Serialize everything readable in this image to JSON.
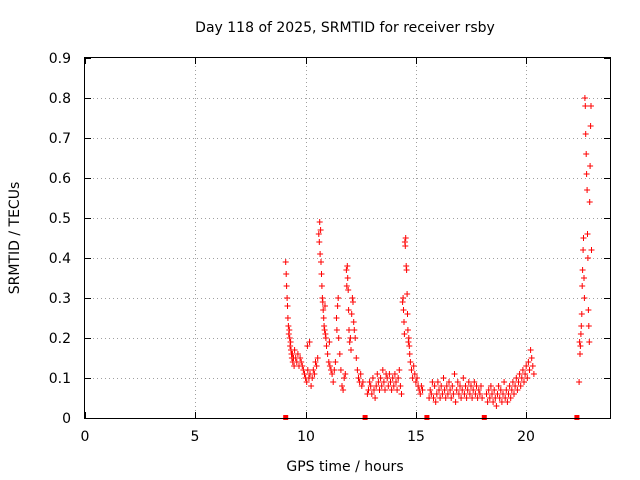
{
  "chart_data": {
    "type": "scatter",
    "title": "Day 118 of 2025, SRMTID for receiver rsby",
    "xlabel": "GPS time / hours",
    "ylabel": "SRMTID / TECUs",
    "xlim": [
      0,
      23.8
    ],
    "ylim": [
      0,
      0.9
    ],
    "x_ticks": [
      0,
      5,
      10,
      15,
      20
    ],
    "x_tick_labels": [
      "0",
      "5",
      "10",
      "15",
      "20"
    ],
    "y_ticks": [
      0,
      0.1,
      0.2,
      0.3,
      0.4,
      0.5,
      0.6,
      0.7,
      0.8,
      0.9
    ],
    "y_tick_labels": [
      "0",
      "0.1",
      "0.2",
      "0.3",
      "0.4",
      "0.5",
      "0.6",
      "0.7",
      "0.8",
      "0.9"
    ],
    "grid": true,
    "marker": "+",
    "color": "#ff0000",
    "data_gap_markers_x": [
      9.1,
      12.7,
      15.5,
      18.1,
      22.3
    ],
    "series": [
      {
        "name": "SRMTID",
        "points": [
          [
            9.1,
            0.39
          ],
          [
            9.12,
            0.36
          ],
          [
            9.14,
            0.33
          ],
          [
            9.16,
            0.3
          ],
          [
            9.18,
            0.28
          ],
          [
            9.2,
            0.25
          ],
          [
            9.22,
            0.23
          ],
          [
            9.24,
            0.21
          ],
          [
            9.26,
            0.22
          ],
          [
            9.28,
            0.2
          ],
          [
            9.3,
            0.18
          ],
          [
            9.32,
            0.19
          ],
          [
            9.34,
            0.17
          ],
          [
            9.36,
            0.16
          ],
          [
            9.38,
            0.15
          ],
          [
            9.4,
            0.16
          ],
          [
            9.42,
            0.14
          ],
          [
            9.45,
            0.15
          ],
          [
            9.48,
            0.13
          ],
          [
            9.5,
            0.17
          ],
          [
            9.55,
            0.15
          ],
          [
            9.6,
            0.14
          ],
          [
            9.65,
            0.16
          ],
          [
            9.7,
            0.13
          ],
          [
            9.75,
            0.15
          ],
          [
            9.8,
            0.14
          ],
          [
            9.85,
            0.13
          ],
          [
            9.9,
            0.12
          ],
          [
            9.95,
            0.11
          ],
          [
            10.0,
            0.1
          ],
          [
            10.05,
            0.09
          ],
          [
            10.08,
            0.18
          ],
          [
            10.1,
            0.12
          ],
          [
            10.15,
            0.1
          ],
          [
            10.18,
            0.19
          ],
          [
            10.2,
            0.11
          ],
          [
            10.25,
            0.08
          ],
          [
            10.3,
            0.1
          ],
          [
            10.35,
            0.12
          ],
          [
            10.4,
            0.11
          ],
          [
            10.45,
            0.14
          ],
          [
            10.5,
            0.13
          ],
          [
            10.55,
            0.15
          ],
          [
            10.6,
            0.46
          ],
          [
            10.62,
            0.44
          ],
          [
            10.64,
            0.49
          ],
          [
            10.66,
            0.41
          ],
          [
            10.68,
            0.47
          ],
          [
            10.7,
            0.39
          ],
          [
            10.72,
            0.36
          ],
          [
            10.74,
            0.33
          ],
          [
            10.76,
            0.3
          ],
          [
            10.78,
            0.29
          ],
          [
            10.8,
            0.27
          ],
          [
            10.82,
            0.25
          ],
          [
            10.84,
            0.23
          ],
          [
            10.86,
            0.22
          ],
          [
            10.88,
            0.28
          ],
          [
            10.9,
            0.21
          ],
          [
            10.92,
            0.2
          ],
          [
            10.95,
            0.18
          ],
          [
            11.0,
            0.16
          ],
          [
            11.05,
            0.14
          ],
          [
            11.08,
            0.19
          ],
          [
            11.1,
            0.13
          ],
          [
            11.15,
            0.12
          ],
          [
            11.2,
            0.11
          ],
          [
            11.25,
            0.09
          ],
          [
            11.3,
            0.12
          ],
          [
            11.35,
            0.14
          ],
          [
            11.4,
            0.25
          ],
          [
            11.42,
            0.22
          ],
          [
            11.45,
            0.28
          ],
          [
            11.48,
            0.3
          ],
          [
            11.5,
            0.2
          ],
          [
            11.55,
            0.16
          ],
          [
            11.6,
            0.12
          ],
          [
            11.65,
            0.08
          ],
          [
            11.7,
            0.07
          ],
          [
            11.75,
            0.1
          ],
          [
            11.8,
            0.11
          ],
          [
            11.85,
            0.37
          ],
          [
            11.87,
            0.33
          ],
          [
            11.89,
            0.38
          ],
          [
            11.91,
            0.35
          ],
          [
            11.93,
            0.32
          ],
          [
            11.95,
            0.27
          ],
          [
            11.97,
            0.22
          ],
          [
            12.0,
            0.19
          ],
          [
            12.03,
            0.2
          ],
          [
            12.06,
            0.17
          ],
          [
            12.09,
            0.26
          ],
          [
            12.12,
            0.3
          ],
          [
            12.15,
            0.29
          ],
          [
            12.18,
            0.24
          ],
          [
            12.21,
            0.22
          ],
          [
            12.25,
            0.2
          ],
          [
            12.3,
            0.15
          ],
          [
            12.35,
            0.12
          ],
          [
            12.4,
            0.1
          ],
          [
            12.45,
            0.09
          ],
          [
            12.5,
            0.11
          ],
          [
            12.55,
            0.08
          ],
          [
            12.6,
            0.09
          ],
          [
            12.8,
            0.06
          ],
          [
            12.85,
            0.07
          ],
          [
            12.9,
            0.09
          ],
          [
            12.95,
            0.08
          ],
          [
            13.0,
            0.06
          ],
          [
            13.05,
            0.1
          ],
          [
            13.1,
            0.07
          ],
          [
            13.15,
            0.05
          ],
          [
            13.2,
            0.08
          ],
          [
            13.25,
            0.11
          ],
          [
            13.3,
            0.09
          ],
          [
            13.35,
            0.07
          ],
          [
            13.4,
            0.1
          ],
          [
            13.45,
            0.08
          ],
          [
            13.5,
            0.12
          ],
          [
            13.55,
            0.09
          ],
          [
            13.6,
            0.07
          ],
          [
            13.65,
            0.11
          ],
          [
            13.7,
            0.1
          ],
          [
            13.75,
            0.08
          ],
          [
            13.8,
            0.11
          ],
          [
            13.85,
            0.09
          ],
          [
            13.9,
            0.07
          ],
          [
            13.95,
            0.1
          ],
          [
            14.0,
            0.08
          ],
          [
            14.05,
            0.11
          ],
          [
            14.1,
            0.09
          ],
          [
            14.15,
            0.07
          ],
          [
            14.2,
            0.1
          ],
          [
            14.25,
            0.12
          ],
          [
            14.3,
            0.08
          ],
          [
            14.35,
            0.06
          ],
          [
            14.4,
            0.29
          ],
          [
            14.42,
            0.3
          ],
          [
            14.44,
            0.27
          ],
          [
            14.46,
            0.24
          ],
          [
            14.48,
            0.21
          ],
          [
            14.5,
            0.44
          ],
          [
            14.52,
            0.43
          ],
          [
            14.54,
            0.45
          ],
          [
            14.56,
            0.38
          ],
          [
            14.58,
            0.37
          ],
          [
            14.6,
            0.31
          ],
          [
            14.62,
            0.26
          ],
          [
            14.64,
            0.22
          ],
          [
            14.66,
            0.19
          ],
          [
            14.68,
            0.2
          ],
          [
            14.7,
            0.18
          ],
          [
            14.72,
            0.16
          ],
          [
            14.75,
            0.14
          ],
          [
            14.8,
            0.12
          ],
          [
            14.85,
            0.1
          ],
          [
            14.9,
            0.13
          ],
          [
            14.95,
            0.11
          ],
          [
            15.0,
            0.09
          ],
          [
            15.05,
            0.1
          ],
          [
            15.1,
            0.08
          ],
          [
            15.15,
            0.07
          ],
          [
            15.2,
            0.06
          ],
          [
            15.25,
            0.08
          ],
          [
            15.3,
            0.07
          ],
          [
            15.6,
            0.05
          ],
          [
            15.65,
            0.07
          ],
          [
            15.7,
            0.06
          ],
          [
            15.75,
            0.09
          ],
          [
            15.8,
            0.05
          ],
          [
            15.85,
            0.08
          ],
          [
            15.9,
            0.04
          ],
          [
            15.95,
            0.06
          ],
          [
            16.0,
            0.09
          ],
          [
            16.05,
            0.07
          ],
          [
            16.1,
            0.05
          ],
          [
            16.15,
            0.08
          ],
          [
            16.2,
            0.06
          ],
          [
            16.25,
            0.1
          ],
          [
            16.3,
            0.07
          ],
          [
            16.35,
            0.05
          ],
          [
            16.4,
            0.08
          ],
          [
            16.45,
            0.06
          ],
          [
            16.5,
            0.09
          ],
          [
            16.55,
            0.07
          ],
          [
            16.6,
            0.05
          ],
          [
            16.65,
            0.08
          ],
          [
            16.7,
            0.06
          ],
          [
            16.75,
            0.11
          ],
          [
            16.8,
            0.04
          ],
          [
            16.85,
            0.07
          ],
          [
            16.9,
            0.09
          ],
          [
            16.95,
            0.06
          ],
          [
            17.0,
            0.08
          ],
          [
            17.05,
            0.05
          ],
          [
            17.1,
            0.07
          ],
          [
            17.15,
            0.1
          ],
          [
            17.2,
            0.06
          ],
          [
            17.25,
            0.08
          ],
          [
            17.3,
            0.05
          ],
          [
            17.35,
            0.07
          ],
          [
            17.4,
            0.09
          ],
          [
            17.45,
            0.06
          ],
          [
            17.5,
            0.08
          ],
          [
            17.55,
            0.05
          ],
          [
            17.6,
            0.07
          ],
          [
            17.65,
            0.09
          ],
          [
            17.7,
            0.06
          ],
          [
            17.75,
            0.08
          ],
          [
            17.8,
            0.05
          ],
          [
            17.85,
            0.07
          ],
          [
            17.9,
            0.06
          ],
          [
            17.95,
            0.08
          ],
          [
            18.0,
            0.05
          ],
          [
            18.2,
            0.06
          ],
          [
            18.25,
            0.04
          ],
          [
            18.3,
            0.07
          ],
          [
            18.35,
            0.05
          ],
          [
            18.4,
            0.08
          ],
          [
            18.45,
            0.06
          ],
          [
            18.5,
            0.04
          ],
          [
            18.55,
            0.07
          ],
          [
            18.6,
            0.05
          ],
          [
            18.65,
            0.03
          ],
          [
            18.7,
            0.06
          ],
          [
            18.75,
            0.08
          ],
          [
            18.8,
            0.05
          ],
          [
            18.85,
            0.07
          ],
          [
            18.9,
            0.04
          ],
          [
            18.95,
            0.06
          ],
          [
            19.0,
            0.09
          ],
          [
            19.05,
            0.05
          ],
          [
            19.1,
            0.07
          ],
          [
            19.15,
            0.04
          ],
          [
            19.2,
            0.06
          ],
          [
            19.25,
            0.08
          ],
          [
            19.3,
            0.05
          ],
          [
            19.35,
            0.07
          ],
          [
            19.4,
            0.09
          ],
          [
            19.45,
            0.06
          ],
          [
            19.5,
            0.08
          ],
          [
            19.55,
            0.1
          ],
          [
            19.6,
            0.07
          ],
          [
            19.65,
            0.09
          ],
          [
            19.7,
            0.11
          ],
          [
            19.75,
            0.08
          ],
          [
            19.8,
            0.1
          ],
          [
            19.85,
            0.12
          ],
          [
            19.9,
            0.09
          ],
          [
            19.95,
            0.11
          ],
          [
            20.0,
            0.13
          ],
          [
            20.05,
            0.1
          ],
          [
            20.1,
            0.14
          ],
          [
            20.15,
            0.12
          ],
          [
            20.2,
            0.17
          ],
          [
            20.25,
            0.15
          ],
          [
            20.3,
            0.13
          ],
          [
            20.35,
            0.11
          ],
          [
            22.4,
            0.09
          ],
          [
            22.42,
            0.19
          ],
          [
            22.44,
            0.16
          ],
          [
            22.46,
            0.18
          ],
          [
            22.48,
            0.21
          ],
          [
            22.5,
            0.23
          ],
          [
            22.52,
            0.26
          ],
          [
            22.54,
            0.33
          ],
          [
            22.56,
            0.37
          ],
          [
            22.58,
            0.42
          ],
          [
            22.6,
            0.45
          ],
          [
            22.62,
            0.35
          ],
          [
            22.64,
            0.3
          ],
          [
            22.66,
            0.8
          ],
          [
            22.68,
            0.78
          ],
          [
            22.7,
            0.71
          ],
          [
            22.72,
            0.66
          ],
          [
            22.74,
            0.61
          ],
          [
            22.76,
            0.57
          ],
          [
            22.78,
            0.46
          ],
          [
            22.8,
            0.4
          ],
          [
            22.82,
            0.27
          ],
          [
            22.84,
            0.23
          ],
          [
            22.86,
            0.19
          ],
          [
            22.88,
            0.54
          ],
          [
            22.9,
            0.63
          ],
          [
            22.92,
            0.73
          ],
          [
            22.94,
            0.78
          ],
          [
            22.96,
            0.42
          ]
        ]
      }
    ]
  }
}
